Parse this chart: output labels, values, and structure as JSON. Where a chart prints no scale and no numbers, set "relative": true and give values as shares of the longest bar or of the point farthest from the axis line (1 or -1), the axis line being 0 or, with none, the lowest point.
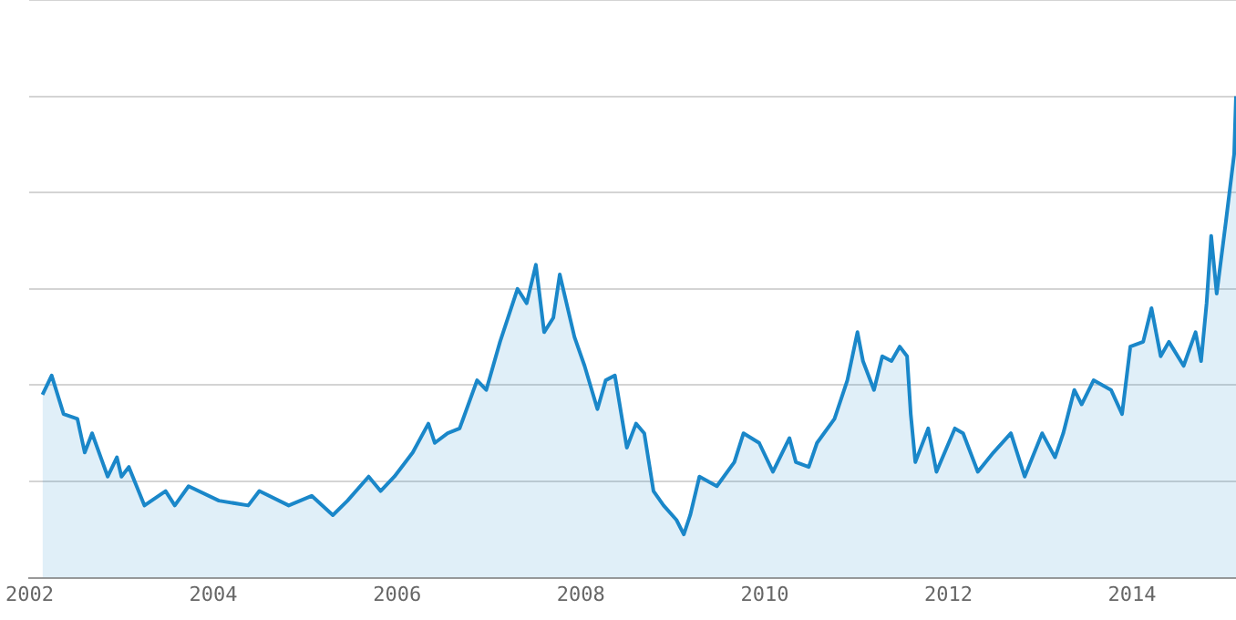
{
  "chart_data": {
    "type": "area",
    "relative": true,
    "grid": "y",
    "color": "#1a87c9",
    "x": [
      2002.14,
      2002.24,
      2002.37,
      2002.52,
      2002.6,
      2002.68,
      2002.85,
      2002.95,
      2003.0,
      2003.08,
      2003.25,
      2003.48,
      2003.58,
      2003.73,
      2004.06,
      2004.38,
      2004.5,
      2004.82,
      2005.07,
      2005.3,
      2005.46,
      2005.69,
      2005.82,
      2005.97,
      2006.17,
      2006.34,
      2006.41,
      2006.55,
      2006.68,
      2006.87,
      2006.97,
      2007.12,
      2007.31,
      2007.41,
      2007.51,
      2007.6,
      2007.7,
      2007.77,
      2007.93,
      2008.04,
      2008.18,
      2008.27,
      2008.37,
      2008.5,
      2008.6,
      2008.69,
      2008.79,
      2008.9,
      2009.04,
      2009.12,
      2009.19,
      2009.29,
      2009.48,
      2009.67,
      2009.77,
      2009.94,
      2010.09,
      2010.27,
      2010.34,
      2010.48,
      2010.57,
      2010.76,
      2010.9,
      2011.01,
      2011.07,
      2011.19,
      2011.28,
      2011.38,
      2011.47,
      2011.55,
      2011.59,
      2011.64,
      2011.78,
      2011.87,
      2012.07,
      2012.16,
      2012.32,
      2012.49,
      2012.68,
      2012.83,
      2013.02,
      2013.16,
      2013.25,
      2013.37,
      2013.45,
      2013.58,
      2013.77,
      2013.89,
      2013.98,
      2014.12,
      2014.21,
      2014.31,
      2014.4,
      2014.56,
      2014.69,
      2014.75,
      2014.81,
      2014.86,
      2014.92,
      2015.02,
      2015.11,
      2015.13
    ],
    "values": [
      0.38,
      0.42,
      0.34,
      0.33,
      0.26,
      0.3,
      0.21,
      0.25,
      0.21,
      0.23,
      0.15,
      0.18,
      0.15,
      0.19,
      0.16,
      0.15,
      0.18,
      0.15,
      0.17,
      0.13,
      0.16,
      0.21,
      0.18,
      0.21,
      0.26,
      0.32,
      0.28,
      0.3,
      0.31,
      0.41,
      0.39,
      0.49,
      0.6,
      0.57,
      0.65,
      0.51,
      0.54,
      0.63,
      0.5,
      0.44,
      0.35,
      0.41,
      0.42,
      0.27,
      0.32,
      0.3,
      0.18,
      0.15,
      0.12,
      0.09,
      0.13,
      0.21,
      0.19,
      0.24,
      0.3,
      0.28,
      0.22,
      0.29,
      0.24,
      0.23,
      0.28,
      0.33,
      0.41,
      0.51,
      0.45,
      0.39,
      0.46,
      0.45,
      0.48,
      0.46,
      0.34,
      0.24,
      0.31,
      0.22,
      0.31,
      0.3,
      0.22,
      0.26,
      0.3,
      0.21,
      0.3,
      0.25,
      0.3,
      0.39,
      0.36,
      0.41,
      0.39,
      0.34,
      0.48,
      0.49,
      0.56,
      0.46,
      0.49,
      0.44,
      0.51,
      0.45,
      0.57,
      0.71,
      0.59,
      0.74,
      0.88,
      1.0
    ],
    "xlim": [
      2002,
      2015.13
    ],
    "xticks": [
      2002,
      2004,
      2006,
      2008,
      2010,
      2012,
      2014
    ]
  }
}
